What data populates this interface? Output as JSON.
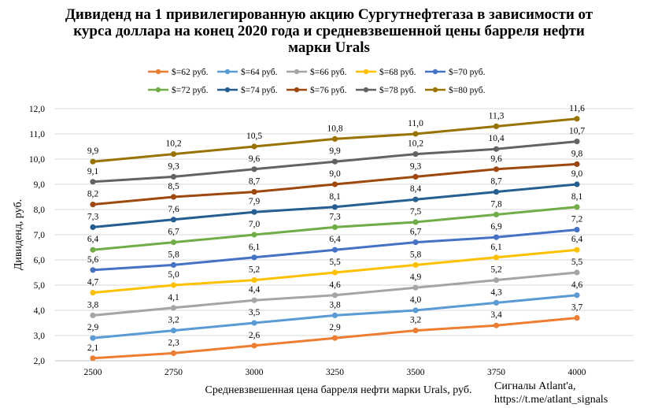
{
  "chart_data": {
    "type": "line",
    "title": [
      "Дивиденд на 1 привилегированную акцию Сургутнефтегаза в зависимости от",
      "курса доллара на конец 2020 года и средневзвешенной цены барреля нефти",
      "марки Urals"
    ],
    "xlabel": "Средневзвешенная цена барреля нефти марки Urals, руб.",
    "ylabel": "Дивиденд, руб.",
    "x": [
      2500,
      2750,
      3000,
      3250,
      3500,
      3750,
      4000
    ],
    "ylim": [
      2.0,
      12.0
    ],
    "yticks": [
      2.0,
      3.0,
      4.0,
      5.0,
      6.0,
      7.0,
      8.0,
      9.0,
      10.0,
      11.0,
      12.0
    ],
    "grid": "horizontal",
    "legend_position": "top",
    "series": [
      {
        "name": "$=62 руб.",
        "color": "#ED7D31",
        "values": [
          2.1,
          2.3,
          2.6,
          2.9,
          3.2,
          3.4,
          3.7
        ]
      },
      {
        "name": "$=64 руб.",
        "color": "#5B9BD5",
        "values": [
          2.9,
          3.2,
          3.5,
          3.8,
          4.0,
          4.3,
          4.6
        ]
      },
      {
        "name": "$=66 руб.",
        "color": "#A5A5A5",
        "values": [
          3.8,
          4.1,
          4.4,
          4.6,
          4.9,
          5.2,
          5.5
        ]
      },
      {
        "name": "$=68 руб.",
        "color": "#FFC000",
        "values": [
          4.7,
          5.0,
          5.2,
          5.5,
          5.8,
          6.1,
          6.4
        ]
      },
      {
        "name": "$=70 руб.",
        "color": "#4472C4",
        "values": [
          5.6,
          5.8,
          6.1,
          6.4,
          6.7,
          6.9,
          7.2
        ]
      },
      {
        "name": "$=72 руб.",
        "color": "#70AD47",
        "values": [
          6.4,
          6.7,
          7.0,
          7.3,
          7.5,
          7.8,
          8.1
        ]
      },
      {
        "name": "$=74 руб.",
        "color": "#255E91",
        "values": [
          7.3,
          7.6,
          7.9,
          8.1,
          8.4,
          8.7,
          9.0
        ]
      },
      {
        "name": "$=76 руб.",
        "color": "#9E480E",
        "values": [
          8.2,
          8.5,
          8.7,
          9.0,
          9.3,
          9.6,
          9.8
        ]
      },
      {
        "name": "$=78 руб.",
        "color": "#636363",
        "values": [
          9.1,
          9.3,
          9.6,
          9.9,
          10.2,
          10.4,
          10.7
        ]
      },
      {
        "name": "$=80 руб.",
        "color": "#997300",
        "values": [
          9.9,
          10.2,
          10.5,
          10.8,
          11.0,
          11.3,
          11.6
        ]
      }
    ]
  },
  "source": {
    "line1": "Сигналы Atlant'a,",
    "line2": "https://t.me/atlant_signals"
  }
}
